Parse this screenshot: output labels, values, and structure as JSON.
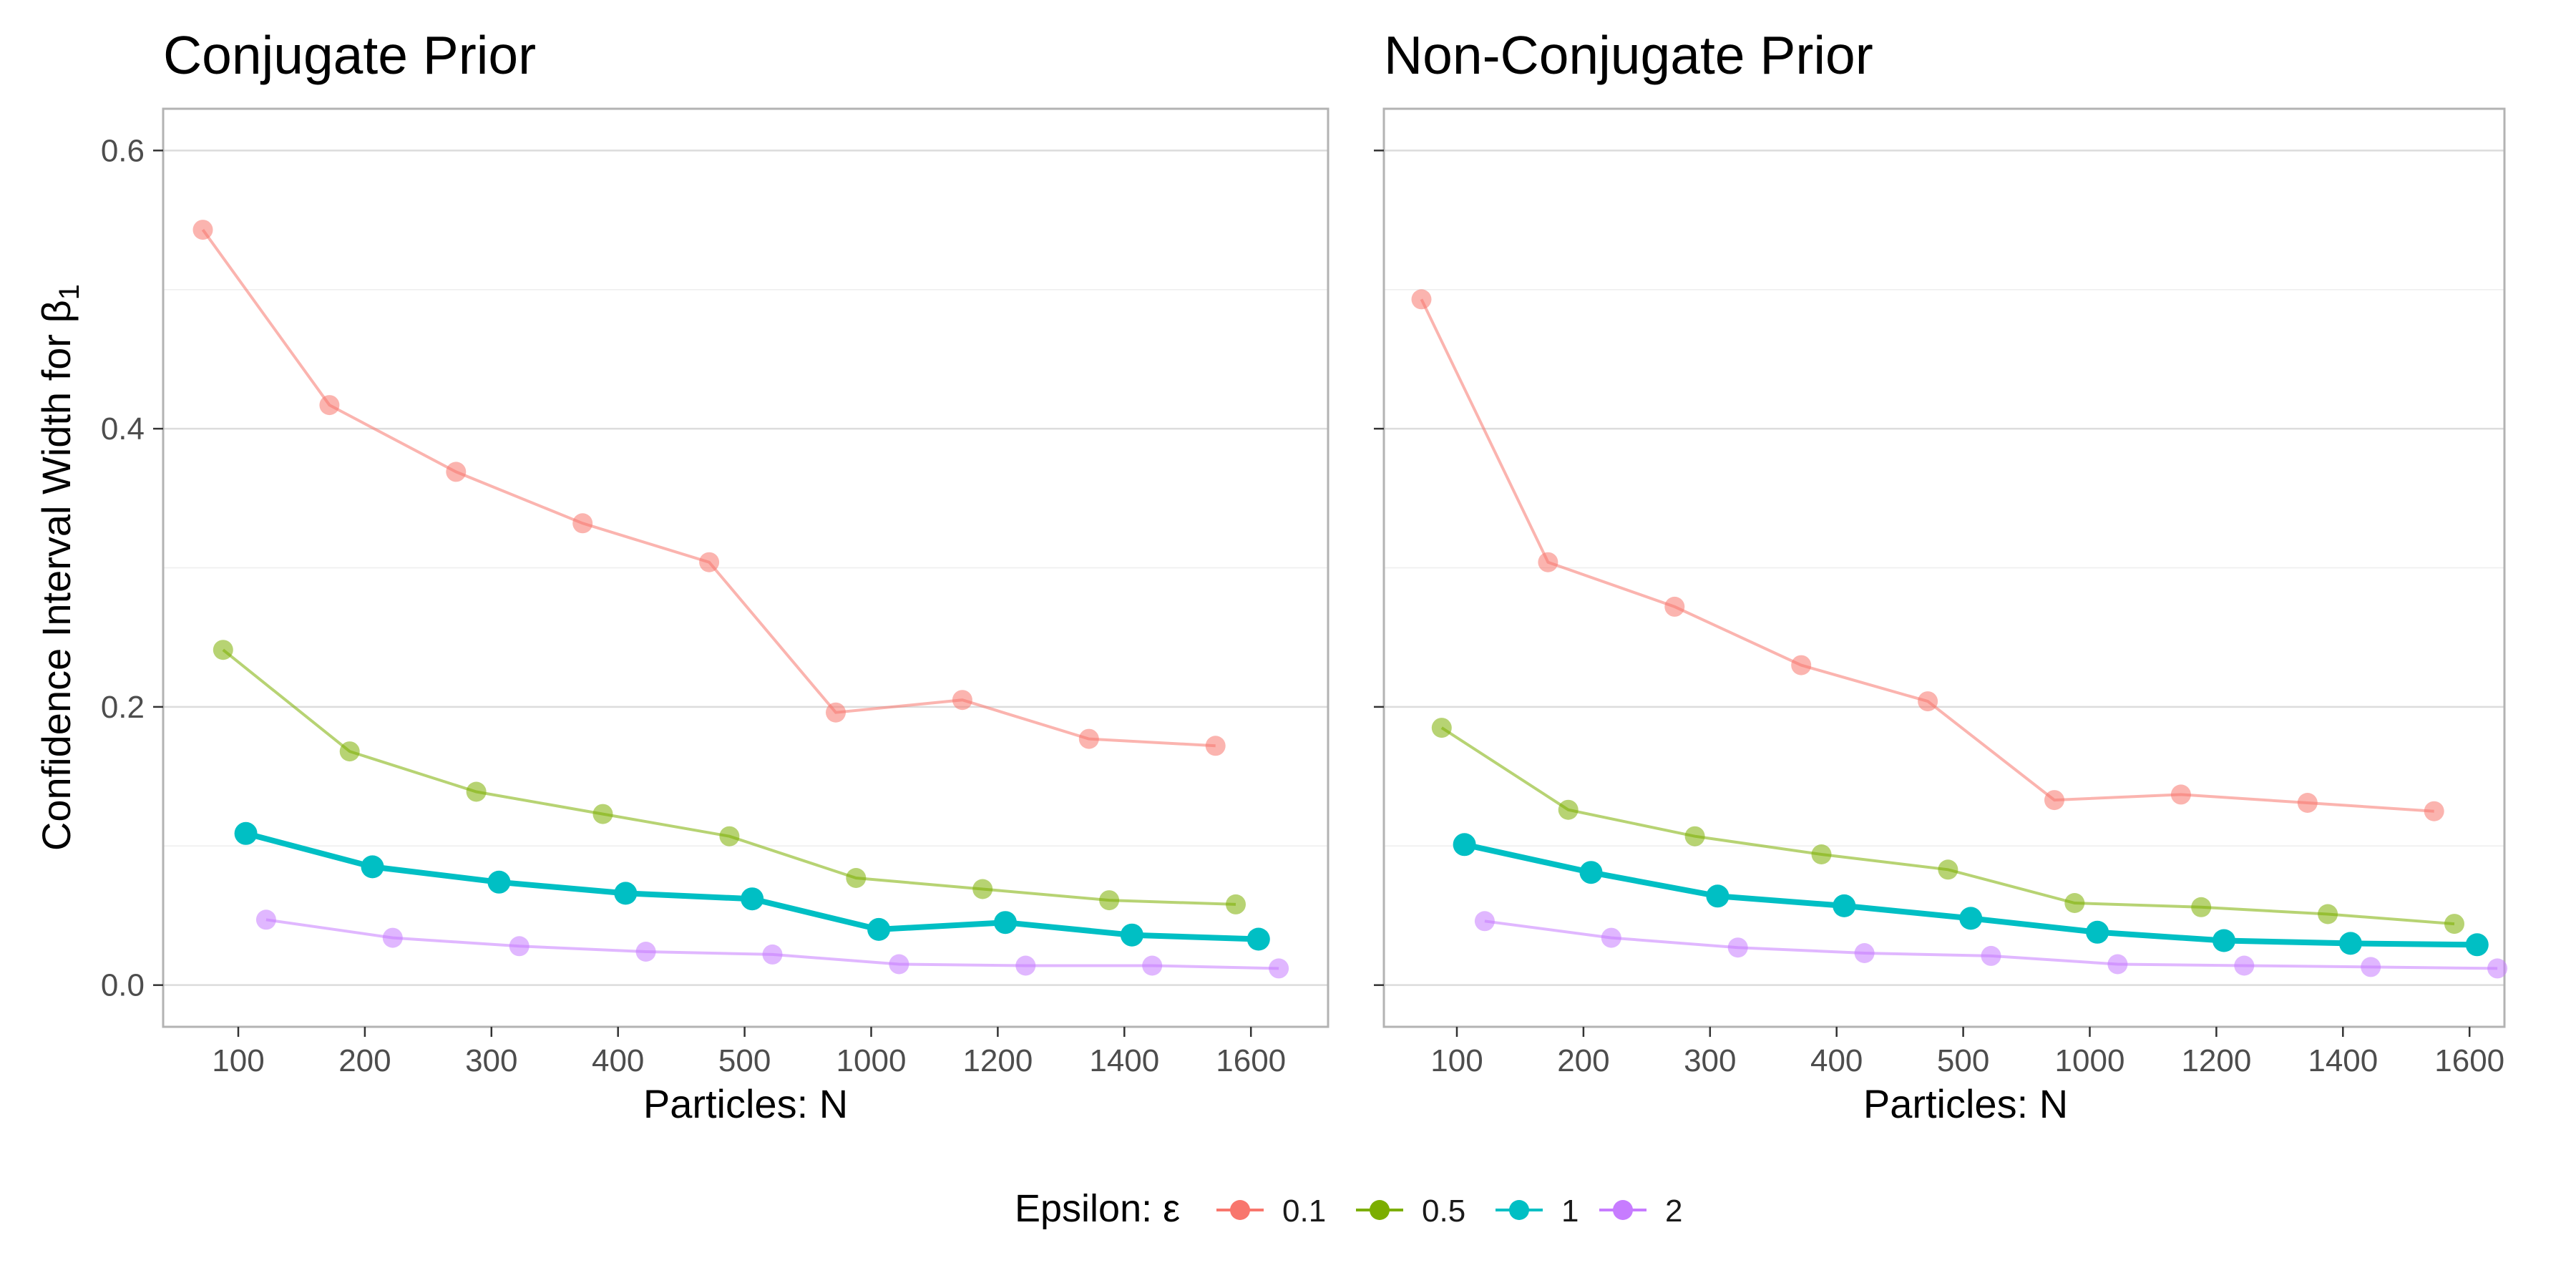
{
  "chart_data": [
    {
      "type": "line",
      "title": "Conjugate Prior",
      "xlabel": "Particles: N",
      "ylabel": "Confidence Interval Width for β",
      "ylabel_subscript": "1",
      "x_ticks": [
        "100",
        "200",
        "300",
        "400",
        "500",
        "1000",
        "1200",
        "1400",
        "1600"
      ],
      "y_ticks": [
        "0.0",
        "0.2",
        "0.4",
        "0.6"
      ],
      "ylim": [
        -0.03,
        0.63
      ],
      "grid": true,
      "series": [
        {
          "name": "0.1",
          "color": "#F8766D",
          "values": [
            0.543,
            0.417,
            0.369,
            0.332,
            0.304,
            0.196,
            0.205,
            0.177,
            0.172
          ]
        },
        {
          "name": "0.5",
          "color": "#7CAE00",
          "values": [
            0.241,
            0.168,
            0.139,
            0.123,
            0.107,
            0.077,
            0.069,
            0.061,
            0.058
          ]
        },
        {
          "name": "1",
          "color": "#00BFC4",
          "values": [
            0.109,
            0.085,
            0.074,
            0.066,
            0.062,
            0.04,
            0.045,
            0.036,
            0.033
          ]
        },
        {
          "name": "2",
          "color": "#C77CFF",
          "values": [
            0.047,
            0.034,
            0.028,
            0.024,
            0.022,
            0.015,
            0.014,
            0.014,
            0.012
          ]
        }
      ]
    },
    {
      "type": "line",
      "title": "Non-Conjugate Prior",
      "xlabel": "Particles: N",
      "x_ticks": [
        "100",
        "200",
        "300",
        "400",
        "500",
        "1000",
        "1200",
        "1400",
        "1600"
      ],
      "y_ticks": [
        "0.0",
        "0.2",
        "0.4",
        "0.6"
      ],
      "ylim": [
        -0.03,
        0.63
      ],
      "grid": true,
      "series": [
        {
          "name": "0.1",
          "color": "#F8766D",
          "values": [
            0.493,
            0.304,
            0.272,
            0.23,
            0.204,
            0.133,
            0.137,
            0.131,
            0.125
          ]
        },
        {
          "name": "0.5",
          "color": "#7CAE00",
          "values": [
            0.185,
            0.126,
            0.107,
            0.094,
            0.083,
            0.059,
            0.056,
            0.051,
            0.044
          ]
        },
        {
          "name": "1",
          "color": "#00BFC4",
          "values": [
            0.101,
            0.081,
            0.064,
            0.057,
            0.048,
            0.038,
            0.032,
            0.03,
            0.029
          ]
        },
        {
          "name": "2",
          "color": "#C77CFF",
          "values": [
            0.046,
            0.034,
            0.027,
            0.023,
            0.021,
            0.015,
            0.014,
            0.013,
            0.012
          ]
        }
      ]
    }
  ],
  "legend": {
    "title": "Epsilon: ε",
    "position": "bottom",
    "items": [
      {
        "label": "0.1",
        "color": "#F8766D"
      },
      {
        "label": "0.5",
        "color": "#7CAE00"
      },
      {
        "label": "1",
        "color": "#00BFC4"
      },
      {
        "label": "2",
        "color": "#C77CFF"
      }
    ]
  }
}
